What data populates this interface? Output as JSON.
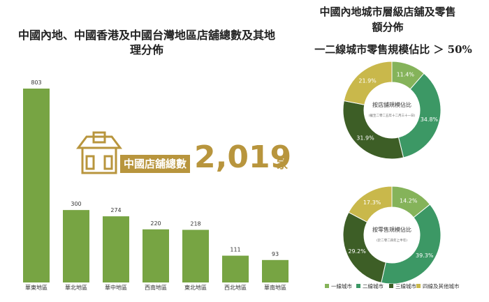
{
  "header": {
    "title": "中國內地城市層級店舖及零售額分佈",
    "subtitle": "一二線城市零售規模佔比 ＞ 50%"
  },
  "store_total": {
    "label": "中國店舖總數",
    "value": "2,019",
    "unit": "家"
  },
  "chart_data": [
    {
      "type": "bar",
      "title": "中國內地、中國香港及中國台灣地區店舖總數及其地理分佈",
      "categories": [
        "華東地區",
        "華北地區",
        "華中地區",
        "西南地區",
        "東北地區",
        "西北地區",
        "華南地區"
      ],
      "values": [
        803,
        300,
        274,
        220,
        218,
        111,
        93
      ],
      "color": "#77a443"
    },
    {
      "type": "pie",
      "title": "按店舖規模佔比",
      "subtitle": "(截至二零二五年十二月三十一日)",
      "categories": [
        "一線城市",
        "二線城市",
        "三線城市",
        "四線及其他城市"
      ],
      "values": [
        11.4,
        34.8,
        31.9,
        21.9
      ],
      "value_labels": [
        "11.4%",
        "34.8%",
        "31.9%",
        "21.9%"
      ],
      "colors": [
        "#85b35a",
        "#3c9865",
        "#3d5e26",
        "#c9b84b"
      ]
    },
    {
      "type": "pie",
      "title": "按零售規模佔比",
      "subtitle": "(於二零二四年上半年)",
      "categories": [
        "一線城市",
        "二線城市",
        "三線城市",
        "四線及其他城市"
      ],
      "values": [
        14.2,
        39.3,
        29.2,
        17.3
      ],
      "value_labels": [
        "14.2%",
        "39.3%",
        "29.2%",
        "17.3%"
      ],
      "colors": [
        "#85b35a",
        "#3c9865",
        "#3d5e26",
        "#c9b84b"
      ]
    }
  ]
}
